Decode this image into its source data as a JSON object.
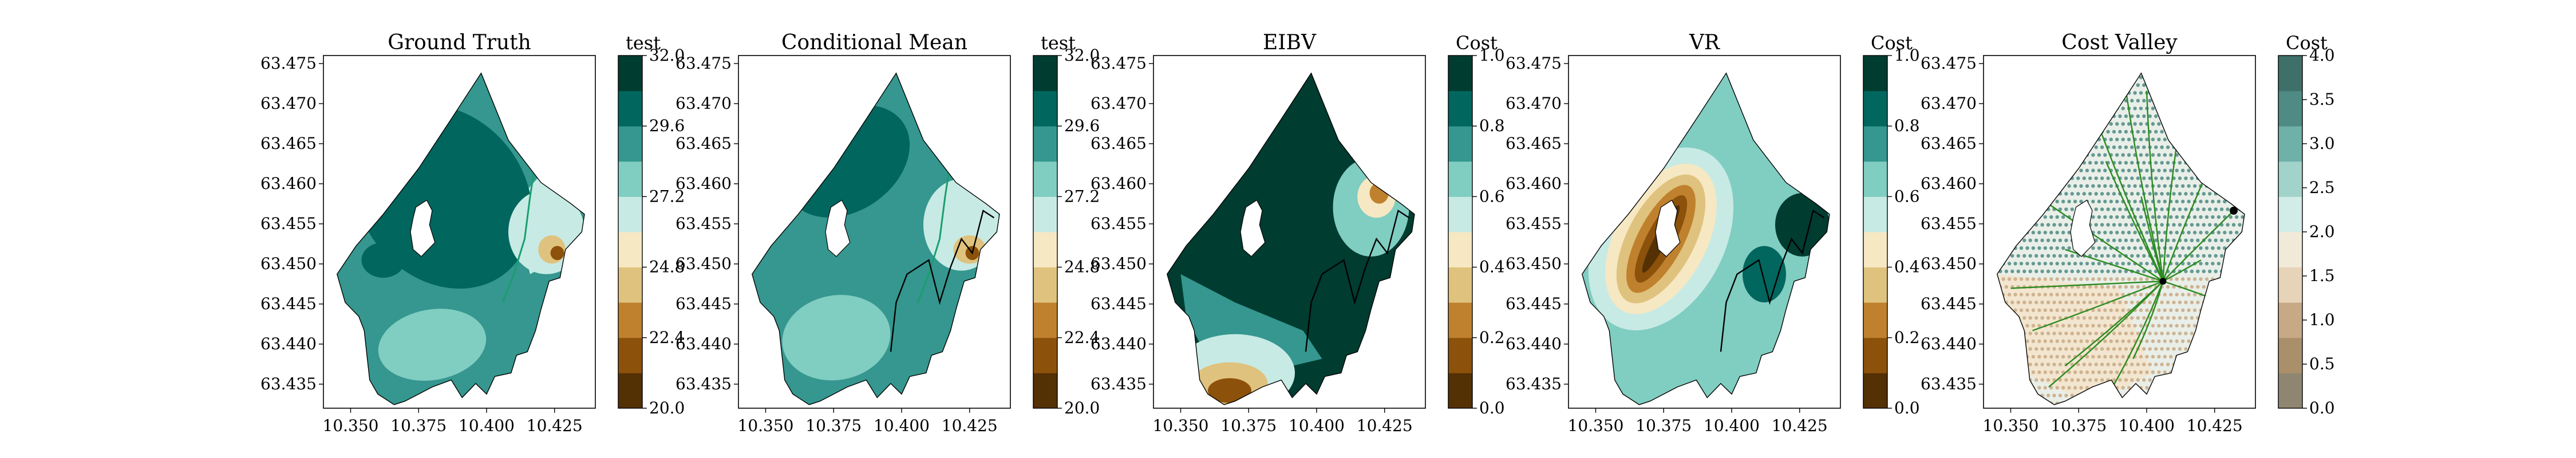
{
  "colors": {
    "brbg": [
      "#543005",
      "#8c510a",
      "#bf812d",
      "#dfc27d",
      "#f6e8c3",
      "#c7eae5",
      "#80cdc1",
      "#35978f",
      "#01665e",
      "#003c30"
    ],
    "cost": [
      "#8e8670",
      "#a9906a",
      "#c8a985",
      "#e7d3b8",
      "#f2ead9",
      "#d2ece7",
      "#a2d3cb",
      "#6fb0a9",
      "#4f8a84",
      "#3f6f69"
    ],
    "path": "#000000",
    "tree": "#2b8a1f"
  },
  "chart_data": [
    {
      "type": "contour",
      "title": "Ground Truth",
      "x_ticks": [
        "10.350",
        "10.375",
        "10.400",
        "10.425"
      ],
      "y_ticks": [
        "63.475",
        "63.470",
        "63.465",
        "63.460",
        "63.455",
        "63.450",
        "63.445",
        "63.440",
        "63.435"
      ],
      "xlim": [
        10.34,
        10.44
      ],
      "ylim": [
        63.432,
        63.476
      ],
      "colorbar": {
        "label": "test",
        "ticks": [
          "32.0",
          "29.6",
          "27.2",
          "24.8",
          "22.4",
          "20.0"
        ],
        "range": [
          20.0,
          32.0
        ]
      }
    },
    {
      "type": "contour",
      "title": "Conditional Mean",
      "x_ticks": [
        "10.350",
        "10.375",
        "10.400",
        "10.425"
      ],
      "y_ticks": [
        "63.475",
        "63.470",
        "63.465",
        "63.460",
        "63.455",
        "63.450",
        "63.445",
        "63.440",
        "63.435"
      ],
      "xlim": [
        10.34,
        10.44
      ],
      "ylim": [
        63.432,
        63.476
      ],
      "colorbar": {
        "label": "test",
        "ticks": [
          "32.0",
          "29.6",
          "27.2",
          "24.8",
          "22.4",
          "20.0"
        ],
        "range": [
          20.0,
          32.0
        ]
      }
    },
    {
      "type": "contour",
      "title": "EIBV",
      "x_ticks": [
        "10.350",
        "10.375",
        "10.400",
        "10.425"
      ],
      "y_ticks": [
        "63.475",
        "63.470",
        "63.465",
        "63.460",
        "63.455",
        "63.450",
        "63.445",
        "63.440",
        "63.435"
      ],
      "xlim": [
        10.34,
        10.44
      ],
      "ylim": [
        63.432,
        63.476
      ],
      "colorbar": {
        "label": "Cost",
        "ticks": [
          "1.0",
          "0.8",
          "0.6",
          "0.4",
          "0.2",
          "0.0"
        ],
        "range": [
          0.0,
          1.0
        ]
      }
    },
    {
      "type": "contour",
      "title": "VR",
      "x_ticks": [
        "10.350",
        "10.375",
        "10.400",
        "10.425"
      ],
      "y_ticks": [
        "63.475",
        "63.470",
        "63.465",
        "63.460",
        "63.455",
        "63.450",
        "63.445",
        "63.440",
        "63.435"
      ],
      "xlim": [
        10.34,
        10.44
      ],
      "ylim": [
        63.432,
        63.476
      ],
      "colorbar": {
        "label": "Cost",
        "ticks": [
          "1.0",
          "0.8",
          "0.6",
          "0.4",
          "0.2",
          "0.0"
        ],
        "range": [
          0.0,
          1.0
        ]
      }
    },
    {
      "type": "scatter",
      "title": "Cost Valley",
      "x_ticks": [
        "10.350",
        "10.375",
        "10.400",
        "10.425"
      ],
      "y_ticks": [
        "63.475",
        "63.470",
        "63.465",
        "63.460",
        "63.455",
        "63.450",
        "63.445",
        "63.440",
        "63.435"
      ],
      "xlim": [
        10.34,
        10.44
      ],
      "ylim": [
        63.432,
        63.476
      ],
      "colorbar": {
        "label": "Cost",
        "ticks": [
          "4.0",
          "3.5",
          "3.0",
          "2.5",
          "2.0",
          "1.5",
          "1.0",
          "0.5",
          "0.0"
        ],
        "range": [
          0.0,
          4.0
        ]
      }
    }
  ]
}
